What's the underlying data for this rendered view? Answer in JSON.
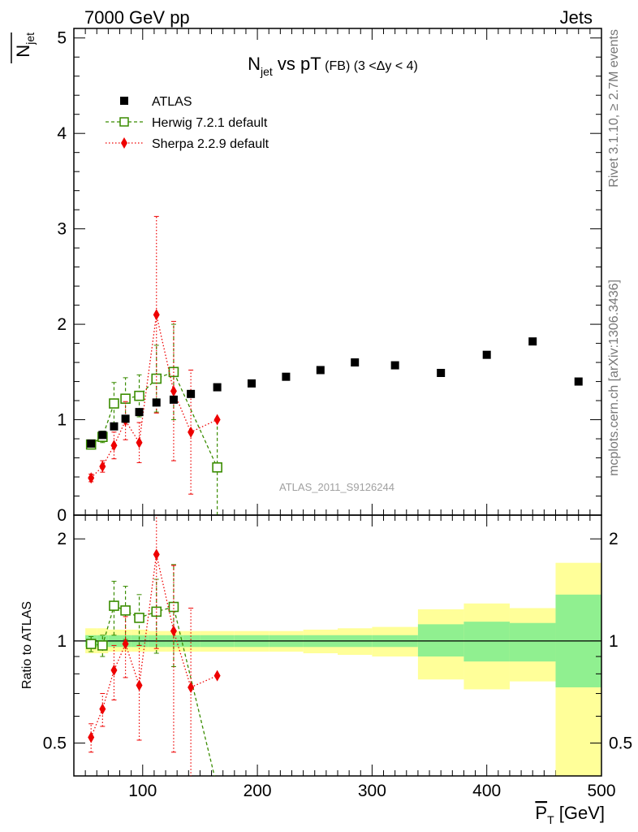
{
  "header": {
    "left": "7000 GeV pp",
    "right": "Jets"
  },
  "side_texts": {
    "rivet": "Rivet 3.1.10, ≥ 2.7M events",
    "mcplots": "mcplots.cern.ch [arXiv:1306.3436]"
  },
  "watermark": "ATLAS_2011_S9126244",
  "colors": {
    "atlas": "#000000",
    "herwig": "#3a8c00",
    "sherpa": "#ee0000",
    "band_inner": "#90f090",
    "band_outer": "#ffff99"
  },
  "chart_data": [
    {
      "type": "scatter",
      "title": {
        "main": "N",
        "sub": "jet",
        "mid": " vs pT",
        "small": " (FB)",
        "cut": " (3 <Δy < 4)"
      },
      "ylabel": {
        "main": "N",
        "sub": "jet"
      },
      "xlabel": {
        "main": "P",
        "sub": "T",
        "unit": " [GeV]"
      },
      "xlim": [
        40,
        500
      ],
      "ylim": [
        0,
        5.1
      ],
      "yticks": [
        0,
        1,
        2,
        3,
        4,
        5
      ],
      "xticks": [
        100,
        200,
        300,
        400,
        500
      ],
      "legend_position": "top-left",
      "series": [
        {
          "name": "ATLAS",
          "marker": "filled-square",
          "points": [
            {
              "x": 55,
              "y": 0.75
            },
            {
              "x": 65,
              "y": 0.84
            },
            {
              "x": 75,
              "y": 0.93
            },
            {
              "x": 85,
              "y": 1.01
            },
            {
              "x": 97,
              "y": 1.08
            },
            {
              "x": 112,
              "y": 1.18
            },
            {
              "x": 127,
              "y": 1.21
            },
            {
              "x": 142,
              "y": 1.27
            },
            {
              "x": 165,
              "y": 1.34
            },
            {
              "x": 195,
              "y": 1.38
            },
            {
              "x": 225,
              "y": 1.45
            },
            {
              "x": 255,
              "y": 1.52
            },
            {
              "x": 285,
              "y": 1.6
            },
            {
              "x": 320,
              "y": 1.57
            },
            {
              "x": 360,
              "y": 1.49
            },
            {
              "x": 400,
              "y": 1.68
            },
            {
              "x": 440,
              "y": 1.82
            },
            {
              "x": 480,
              "y": 1.4
            }
          ]
        },
        {
          "name": "Herwig 7.2.1 default",
          "marker": "open-square",
          "points": [
            {
              "x": 55,
              "y": 0.74,
              "lo": 0.04,
              "hi": 0.04
            },
            {
              "x": 65,
              "y": 0.82,
              "lo": 0.06,
              "hi": 0.06
            },
            {
              "x": 75,
              "y": 1.17,
              "lo": 0.22,
              "hi": 0.22
            },
            {
              "x": 85,
              "y": 1.22,
              "lo": 0.22,
              "hi": 0.22
            },
            {
              "x": 97,
              "y": 1.25,
              "lo": 0.22,
              "hi": 0.22
            },
            {
              "x": 112,
              "y": 1.43,
              "lo": 0.35,
              "hi": 0.35
            },
            {
              "x": 127,
              "y": 1.5,
              "lo": 0.5,
              "hi": 0.5
            },
            {
              "x": 165,
              "y": 0.5,
              "lo": 0.5,
              "hi": 0.5
            }
          ]
        },
        {
          "name": "Sherpa 2.2.9 default",
          "marker": "filled-diamond",
          "points": [
            {
              "x": 55,
              "y": 0.39,
              "lo": 0.04,
              "hi": 0.04
            },
            {
              "x": 65,
              "y": 0.51,
              "lo": 0.06,
              "hi": 0.06
            },
            {
              "x": 75,
              "y": 0.73,
              "lo": 0.14,
              "hi": 0.14
            },
            {
              "x": 85,
              "y": 0.99,
              "lo": 0.2,
              "hi": 0.2
            },
            {
              "x": 97,
              "y": 0.76,
              "lo": 0.21,
              "hi": 0.21
            },
            {
              "x": 112,
              "y": 2.1,
              "lo": 1.03,
              "hi": 1.03
            },
            {
              "x": 127,
              "y": 1.3,
              "lo": 0.73,
              "hi": 0.73
            },
            {
              "x": 142,
              "y": 0.87,
              "lo": 0.65,
              "hi": 0.65
            },
            {
              "x": 165,
              "y": 1.0,
              "lo": 0,
              "hi": 0
            }
          ]
        }
      ]
    },
    {
      "type": "scatter",
      "ylabel": "Ratio to ATLAS",
      "scale": "log",
      "ylim": [
        0.4,
        2.35
      ],
      "yticks": [
        0.5,
        1,
        2
      ],
      "xlim": [
        40,
        500
      ],
      "bands": [
        {
          "x0": 50,
          "x1": 60,
          "inner": [
            0.96,
            1.04
          ],
          "outer": [
            0.92,
            1.09
          ]
        },
        {
          "x0": 60,
          "x1": 70,
          "inner": [
            0.96,
            1.04
          ],
          "outer": [
            0.92,
            1.09
          ]
        },
        {
          "x0": 70,
          "x1": 80,
          "inner": [
            0.96,
            1.04
          ],
          "outer": [
            0.93,
            1.08
          ]
        },
        {
          "x0": 80,
          "x1": 90,
          "inner": [
            0.96,
            1.04
          ],
          "outer": [
            0.93,
            1.08
          ]
        },
        {
          "x0": 90,
          "x1": 105,
          "inner": [
            0.96,
            1.04
          ],
          "outer": [
            0.93,
            1.08
          ]
        },
        {
          "x0": 105,
          "x1": 120,
          "inner": [
            0.96,
            1.04
          ],
          "outer": [
            0.93,
            1.07
          ]
        },
        {
          "x0": 120,
          "x1": 135,
          "inner": [
            0.96,
            1.04
          ],
          "outer": [
            0.93,
            1.07
          ]
        },
        {
          "x0": 135,
          "x1": 150,
          "inner": [
            0.96,
            1.04
          ],
          "outer": [
            0.93,
            1.07
          ]
        },
        {
          "x0": 150,
          "x1": 180,
          "inner": [
            0.96,
            1.04
          ],
          "outer": [
            0.93,
            1.07
          ]
        },
        {
          "x0": 180,
          "x1": 210,
          "inner": [
            0.96,
            1.04
          ],
          "outer": [
            0.93,
            1.07
          ]
        },
        {
          "x0": 210,
          "x1": 240,
          "inner": [
            0.96,
            1.04
          ],
          "outer": [
            0.93,
            1.07
          ]
        },
        {
          "x0": 240,
          "x1": 270,
          "inner": [
            0.96,
            1.04
          ],
          "outer": [
            0.92,
            1.08
          ]
        },
        {
          "x0": 270,
          "x1": 300,
          "inner": [
            0.96,
            1.04
          ],
          "outer": [
            0.91,
            1.09
          ]
        },
        {
          "x0": 300,
          "x1": 340,
          "inner": [
            0.96,
            1.04
          ],
          "outer": [
            0.9,
            1.1
          ]
        },
        {
          "x0": 340,
          "x1": 380,
          "inner": [
            0.9,
            1.12
          ],
          "outer": [
            0.77,
            1.24
          ]
        },
        {
          "x0": 380,
          "x1": 420,
          "inner": [
            0.87,
            1.14
          ],
          "outer": [
            0.72,
            1.29
          ]
        },
        {
          "x0": 420,
          "x1": 460,
          "inner": [
            0.87,
            1.13
          ],
          "outer": [
            0.76,
            1.25
          ]
        },
        {
          "x0": 460,
          "x1": 500,
          "inner": [
            0.73,
            1.37
          ],
          "outer": [
            0.36,
            1.7
          ]
        }
      ],
      "series": [
        {
          "name": "Herwig 7.2.1 default",
          "points": [
            {
              "x": 55,
              "y": 0.98,
              "lo": 0.05,
              "hi": 0.05
            },
            {
              "x": 65,
              "y": 0.97,
              "lo": 0.07,
              "hi": 0.07
            },
            {
              "x": 75,
              "y": 1.27,
              "lo": 0.23,
              "hi": 0.23
            },
            {
              "x": 85,
              "y": 1.23,
              "lo": 0.22,
              "hi": 0.22
            },
            {
              "x": 97,
              "y": 1.17,
              "lo": 0.2,
              "hi": 0.2
            },
            {
              "x": 112,
              "y": 1.22,
              "lo": 0.3,
              "hi": 0.3
            },
            {
              "x": 127,
              "y": 1.26,
              "lo": 0.42,
              "hi": 0.42
            },
            {
              "x": 165,
              "y": 0.37,
              "lo": 0,
              "hi": 0
            }
          ]
        },
        {
          "name": "Sherpa 2.2.9 default",
          "points": [
            {
              "x": 55,
              "y": 0.52,
              "lo": 0.05,
              "hi": 0.05
            },
            {
              "x": 65,
              "y": 0.63,
              "lo": 0.07,
              "hi": 0.07
            },
            {
              "x": 75,
              "y": 0.82,
              "lo": 0.15,
              "hi": 0.15
            },
            {
              "x": 85,
              "y": 0.98,
              "lo": 0.2,
              "hi": 0.2
            },
            {
              "x": 97,
              "y": 0.74,
              "lo": 0.23,
              "hi": 0.23
            },
            {
              "x": 112,
              "y": 1.8,
              "lo": 0.85,
              "hi": 0.85
            },
            {
              "x": 127,
              "y": 1.07,
              "lo": 0.6,
              "hi": 0.6
            },
            {
              "x": 142,
              "y": 0.73,
              "lo": 0.52,
              "hi": 0.52
            },
            {
              "x": 165,
              "y": 0.79,
              "lo": 0,
              "hi": 0
            }
          ]
        }
      ]
    }
  ]
}
